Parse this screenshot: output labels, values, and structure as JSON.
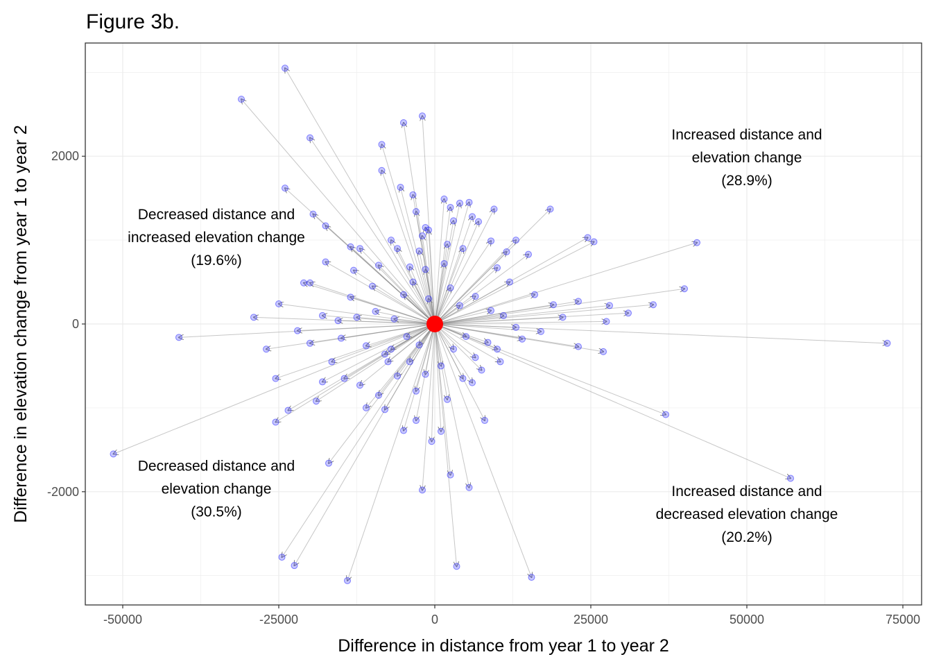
{
  "chart_data": {
    "type": "scatter",
    "title": "Figure 3b.",
    "xlabel": "Difference in distance from year 1 to year 2",
    "ylabel": "Difference in elevation change from year 1 to year 2",
    "xlim": [
      -56000,
      78000
    ],
    "ylim": [
      -3350,
      3350
    ],
    "x_ticks": [
      -50000,
      -25000,
      0,
      25000,
      50000,
      75000
    ],
    "x_tick_labels": [
      "-50000",
      "-25000",
      "0",
      "25000",
      "50000",
      "75000"
    ],
    "y_ticks": [
      -2000,
      0,
      2000
    ],
    "y_tick_labels": [
      "-2000",
      "0",
      "2000"
    ],
    "grid": true,
    "origin": {
      "x": 0,
      "y": 0,
      "color": "#ff0000"
    },
    "point_color": "#0000ff",
    "arrow_color": "#808080",
    "annotations": [
      {
        "lines": [
          "Increased distance and",
          "elevation change",
          "(28.9%)"
        ],
        "x": 50000,
        "y": 2200
      },
      {
        "lines": [
          "Decreased distance and",
          "increased elevation change",
          "(19.6%)"
        ],
        "x": -35000,
        "y": 1250
      },
      {
        "lines": [
          "Decreased distance and",
          "elevation change",
          "(30.5%)"
        ],
        "x": -35000,
        "y": -1750
      },
      {
        "lines": [
          "Increased distance and",
          "decreased elevation change",
          "(20.2%)"
        ],
        "x": 50000,
        "y": -2050
      }
    ],
    "points": [
      [
        -24000,
        3050
      ],
      [
        -31000,
        2680
      ],
      [
        -20000,
        2220
      ],
      [
        -24000,
        1620
      ],
      [
        -19500,
        1310
      ],
      [
        -17500,
        1170
      ],
      [
        -13500,
        920
      ],
      [
        -17500,
        740
      ],
      [
        -13000,
        640
      ],
      [
        -21000,
        490
      ],
      [
        -20000,
        490
      ],
      [
        -12000,
        900
      ],
      [
        -25000,
        240
      ],
      [
        -29000,
        80
      ],
      [
        -41000,
        -160
      ],
      [
        -27000,
        -300
      ],
      [
        -25500,
        -650
      ],
      [
        -18000,
        -690
      ],
      [
        -19000,
        -920
      ],
      [
        -23500,
        -1030
      ],
      [
        -25500,
        -1170
      ],
      [
        -17000,
        -1660
      ],
      [
        -51500,
        -1550
      ],
      [
        -24500,
        -2780
      ],
      [
        -22500,
        -2880
      ],
      [
        -14000,
        -3060
      ],
      [
        -8500,
        2140
      ],
      [
        -8500,
        1830
      ],
      [
        -5000,
        2400
      ],
      [
        -2000,
        2480
      ],
      [
        -5500,
        1630
      ],
      [
        -3500,
        1540
      ],
      [
        -3000,
        1340
      ],
      [
        -1500,
        1150
      ],
      [
        1500,
        1490
      ],
      [
        2500,
        1390
      ],
      [
        4000,
        1440
      ],
      [
        5500,
        1450
      ],
      [
        9500,
        1370
      ],
      [
        18500,
        1370
      ],
      [
        24500,
        1030
      ],
      [
        25500,
        980
      ],
      [
        42000,
        970
      ],
      [
        9000,
        990
      ],
      [
        11500,
        860
      ],
      [
        15000,
        830
      ],
      [
        13000,
        1000
      ],
      [
        40000,
        420
      ],
      [
        35000,
        230
      ],
      [
        23000,
        270
      ],
      [
        28000,
        220
      ],
      [
        31000,
        130
      ],
      [
        27500,
        30
      ],
      [
        27000,
        -330
      ],
      [
        23000,
        -270
      ],
      [
        72500,
        -230
      ],
      [
        37000,
        -1080
      ],
      [
        57000,
        -1840
      ],
      [
        15500,
        -3020
      ],
      [
        3500,
        -2890
      ],
      [
        5500,
        -1950
      ],
      [
        -2000,
        -1980
      ],
      [
        2500,
        -1800
      ],
      [
        8000,
        -1150
      ],
      [
        6000,
        -700
      ],
      [
        -3000,
        -1150
      ],
      [
        -5000,
        -1270
      ],
      [
        -8000,
        -1020
      ],
      [
        -11000,
        -1000
      ],
      [
        -12000,
        -730
      ],
      [
        -8000,
        -360
      ],
      [
        -15000,
        -170
      ],
      [
        -13500,
        320
      ],
      [
        -9000,
        700
      ],
      [
        -6000,
        900
      ],
      [
        -4000,
        680
      ],
      [
        -10000,
        450
      ],
      [
        -7000,
        1000
      ],
      [
        -2500,
        870
      ],
      [
        -1000,
        1120
      ],
      [
        3000,
        1230
      ],
      [
        6000,
        1280
      ],
      [
        7000,
        1220
      ],
      [
        10000,
        670
      ],
      [
        12000,
        500
      ],
      [
        16000,
        350
      ],
      [
        19000,
        230
      ],
      [
        20500,
        80
      ],
      [
        17000,
        -90
      ],
      [
        14000,
        -180
      ],
      [
        10000,
        -300
      ],
      [
        6500,
        -400
      ],
      [
        4500,
        -650
      ],
      [
        2000,
        -900
      ],
      [
        1000,
        -1280
      ],
      [
        -500,
        -1400
      ],
      [
        -3000,
        -800
      ],
      [
        -6000,
        -620
      ],
      [
        -7500,
        -450
      ],
      [
        -11000,
        -260
      ],
      [
        -9500,
        150
      ],
      [
        -12500,
        80
      ],
      [
        -15500,
        40
      ],
      [
        -18000,
        100
      ],
      [
        -22000,
        -80
      ],
      [
        -20000,
        -230
      ],
      [
        -16500,
        -450
      ],
      [
        -14500,
        -650
      ],
      [
        4000,
        220
      ],
      [
        6500,
        330
      ],
      [
        9000,
        160
      ],
      [
        11000,
        100
      ],
      [
        13000,
        -40
      ],
      [
        8500,
        -220
      ],
      [
        5000,
        -150
      ],
      [
        3000,
        -300
      ],
      [
        -2500,
        -250
      ],
      [
        -4500,
        -150
      ],
      [
        -6500,
        60
      ],
      [
        -5000,
        350
      ],
      [
        -3500,
        500
      ],
      [
        -1500,
        650
      ],
      [
        1500,
        720
      ],
      [
        2500,
        430
      ],
      [
        -1000,
        300
      ],
      [
        1000,
        -500
      ],
      [
        -1500,
        -600
      ],
      [
        -4000,
        -450
      ],
      [
        2000,
        950
      ],
      [
        -2000,
        1050
      ],
      [
        4500,
        900
      ],
      [
        -7000,
        -300
      ],
      [
        7500,
        -550
      ],
      [
        -9000,
        -850
      ],
      [
        10500,
        -450
      ]
    ]
  }
}
